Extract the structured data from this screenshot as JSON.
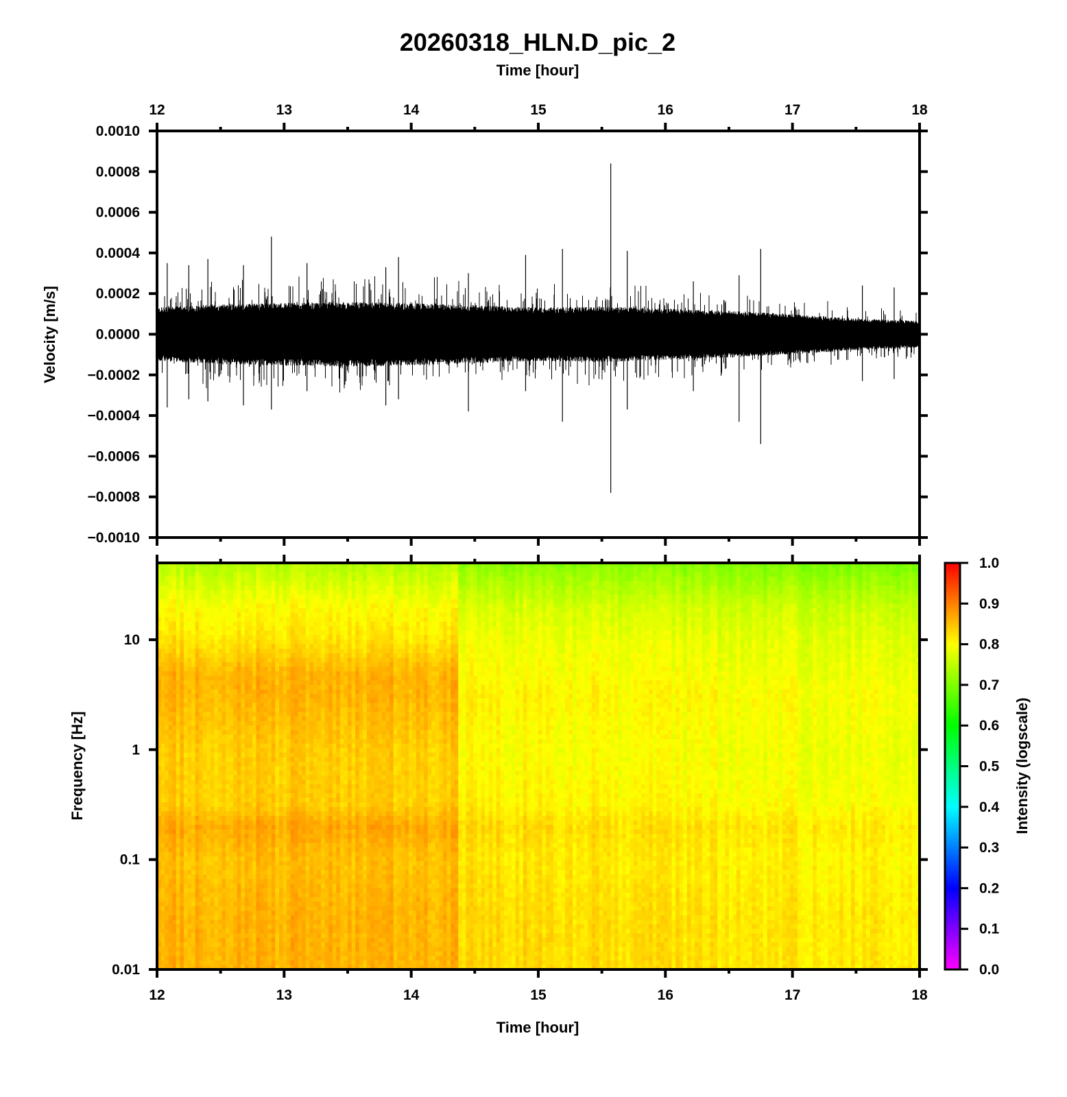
{
  "figure": {
    "title": "20260318_HLN.D_pic_2",
    "top_xlabel": "Time [hour]",
    "bottom_xlabel": "Time [hour]"
  },
  "chart_data": [
    {
      "type": "line",
      "panel": "waveform",
      "ylabel": "Velocity [m/s]",
      "xlabel": "Time [hour]",
      "xlim": [
        12,
        18
      ],
      "ylim": [
        -0.001,
        0.001
      ],
      "x_ticks": [
        "12",
        "13",
        "14",
        "15",
        "16",
        "17",
        "18"
      ],
      "y_ticks": [
        "0.0010",
        "0.0008",
        "0.0006",
        "0.0004",
        "0.0002",
        "0.0000",
        "−0.0002",
        "−0.0004",
        "−0.0006",
        "−0.0008",
        "−0.0010"
      ],
      "envelope": {
        "time": [
          12.0,
          12.5,
          13.0,
          13.5,
          14.0,
          14.5,
          15.0,
          15.5,
          16.0,
          16.5,
          17.0,
          17.5,
          18.0
        ],
        "amplitude": [
          0.00012,
          0.000135,
          0.00014,
          0.000145,
          0.00014,
          0.00013,
          0.00012,
          0.000125,
          0.000115,
          0.000105,
          9e-05,
          7e-05,
          6e-05
        ]
      },
      "spikes": [
        {
          "t": 12.08,
          "max": 0.00035,
          "min": -0.00036
        },
        {
          "t": 12.25,
          "max": 0.00034,
          "min": -0.00032
        },
        {
          "t": 12.4,
          "max": 0.00037,
          "min": -0.00033
        },
        {
          "t": 12.68,
          "max": 0.00034,
          "min": -0.00035
        },
        {
          "t": 12.9,
          "max": 0.00048,
          "min": -0.00037
        },
        {
          "t": 13.18,
          "max": 0.00035,
          "min": -0.00028
        },
        {
          "t": 13.8,
          "max": 0.00033,
          "min": -0.00035
        },
        {
          "t": 13.9,
          "max": 0.00038,
          "min": -0.00032
        },
        {
          "t": 14.45,
          "max": 0.0003,
          "min": -0.00038
        },
        {
          "t": 14.9,
          "max": 0.00039,
          "min": -0.00028
        },
        {
          "t": 15.19,
          "max": 0.00042,
          "min": -0.00043
        },
        {
          "t": 15.57,
          "max": 0.00084,
          "min": -0.00078
        },
        {
          "t": 15.7,
          "max": 0.00041,
          "min": -0.00037
        },
        {
          "t": 16.22,
          "max": 0.00026,
          "min": -0.00028
        },
        {
          "t": 16.58,
          "max": 0.00029,
          "min": -0.00043
        },
        {
          "t": 16.75,
          "max": 0.00042,
          "min": -0.00054
        },
        {
          "t": 17.55,
          "max": 0.00024,
          "min": -0.00023
        },
        {
          "t": 17.8,
          "max": 0.00023,
          "min": -0.00022
        }
      ],
      "color": "#000000"
    },
    {
      "type": "heatmap",
      "panel": "spectrogram",
      "ylabel": "Frequency [Hz]",
      "xlabel": "Time [hour]",
      "xlim": [
        12,
        18
      ],
      "ylim": [
        0.01,
        50
      ],
      "yscale": "log",
      "x_ticks": [
        "12",
        "13",
        "14",
        "15",
        "16",
        "17",
        "18"
      ],
      "y_ticks": [
        {
          "value": 10,
          "label": "10"
        },
        {
          "value": 1,
          "label": "1"
        },
        {
          "value": 0.1,
          "label": "0.1"
        },
        {
          "value": 0.01,
          "label": "0.01"
        }
      ],
      "intensity_profile": {
        "log10_freq": [
          -2.0,
          -1.5,
          -1.0,
          -0.7,
          -0.5,
          0.0,
          0.5,
          0.7,
          1.0,
          1.3,
          1.7
        ],
        "early_intensity": [
          0.86,
          0.86,
          0.85,
          0.87,
          0.84,
          0.84,
          0.86,
          0.86,
          0.82,
          0.8,
          0.74
        ],
        "late_intensity": [
          0.83,
          0.83,
          0.82,
          0.83,
          0.81,
          0.8,
          0.81,
          0.8,
          0.79,
          0.77,
          0.71
        ]
      },
      "transition_time": 14.38,
      "colorbar": {
        "label": "Intensity (logscale)",
        "range": [
          0.0,
          1.0
        ],
        "ticks": [
          "1.0",
          "0.9",
          "0.8",
          "0.7",
          "0.6",
          "0.5",
          "0.4",
          "0.3",
          "0.2",
          "0.1",
          "0.0"
        ],
        "colors": [
          "#ff00ff",
          "#0000ff",
          "#00ffff",
          "#00ff00",
          "#ffff00",
          "#ff0000"
        ]
      }
    }
  ]
}
